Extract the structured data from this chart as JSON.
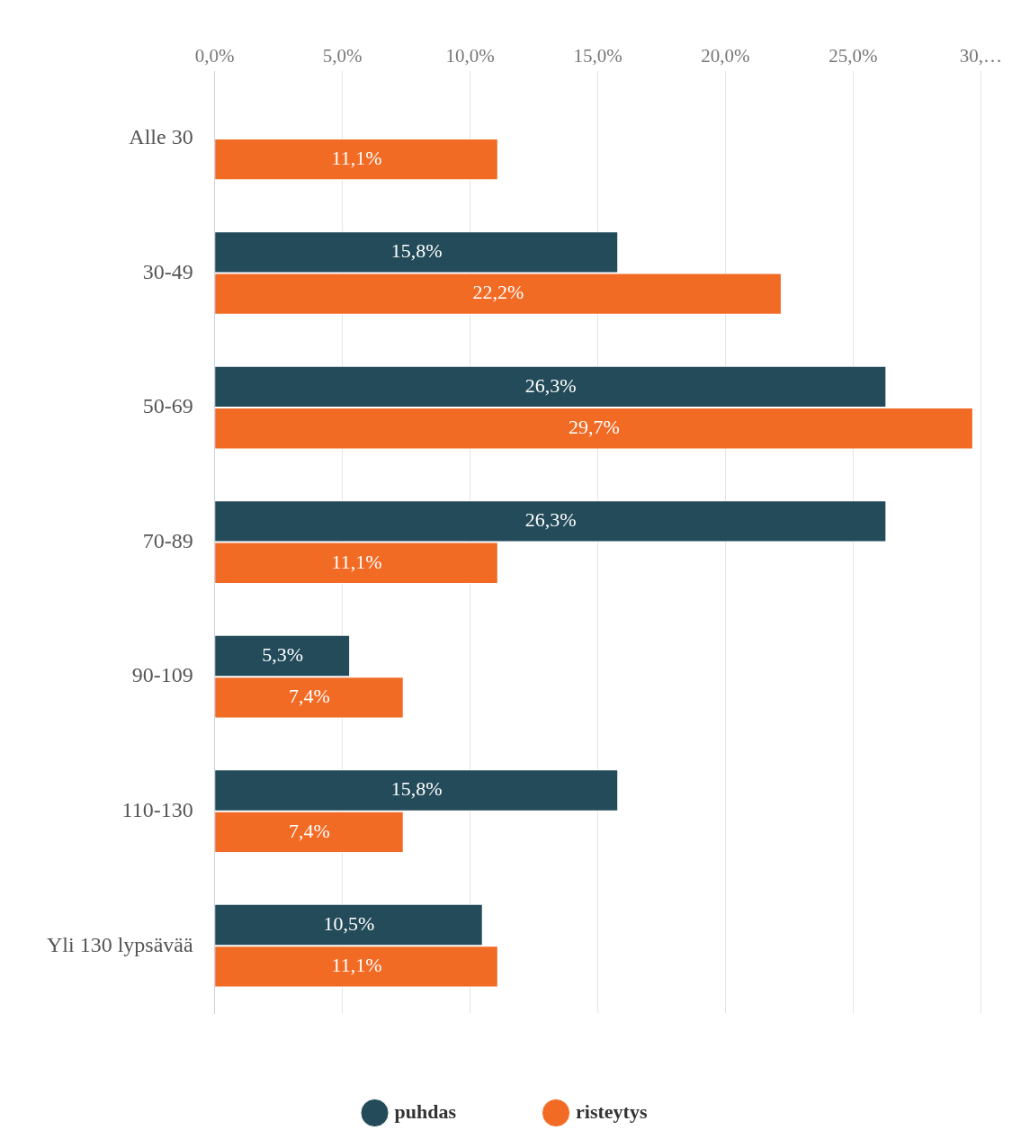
{
  "chart_data": {
    "type": "bar",
    "orientation": "horizontal",
    "categories": [
      "Alle 30",
      "30-49",
      "50-69",
      "70-89",
      "90-109",
      "110-130",
      "Yli 130 lypsävää"
    ],
    "series": [
      {
        "name": "puhdas",
        "color": "#234b5a",
        "values": [
          null,
          15.8,
          26.3,
          26.3,
          5.3,
          15.8,
          10.5
        ],
        "value_labels": [
          null,
          "15,8%",
          "26,3%",
          "26,3%",
          "5,3%",
          "15,8%",
          "10,5%"
        ]
      },
      {
        "name": "risteytys",
        "color": "#f26b25",
        "values": [
          11.1,
          22.2,
          29.7,
          11.1,
          7.4,
          7.4,
          11.1
        ],
        "value_labels": [
          "11,1%",
          "22,2%",
          "29,7%",
          "11,1%",
          "7,4%",
          "7,4%",
          "11,1%"
        ]
      }
    ],
    "xlim": [
      0,
      30
    ],
    "xticks": [
      {
        "value": 0,
        "label": "0,0%"
      },
      {
        "value": 5,
        "label": "5,0%"
      },
      {
        "value": 10,
        "label": "10,0%"
      },
      {
        "value": 15,
        "label": "15,0%"
      },
      {
        "value": 20,
        "label": "20,0%"
      },
      {
        "value": 25,
        "label": "25,0%"
      },
      {
        "value": 30,
        "label": "30,…"
      }
    ],
    "grid": "x",
    "legend": "bottom"
  }
}
